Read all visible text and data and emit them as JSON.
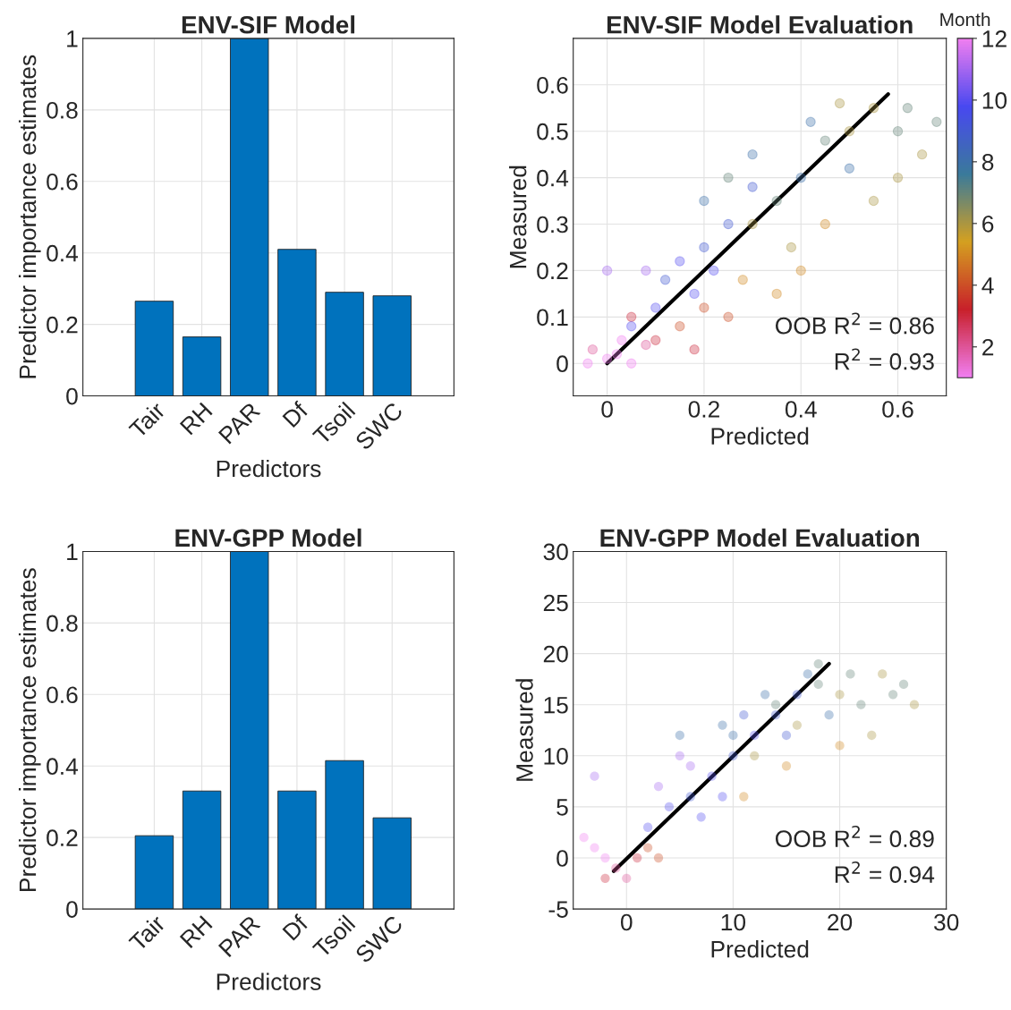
{
  "chart_data": [
    {
      "type": "bar",
      "title": "ENV-SIF Model",
      "xlabel": "Predictors",
      "ylabel": "Predictor importance estimates",
      "categories": [
        "Tair",
        "RH",
        "PAR",
        "Df",
        "Tsoil",
        "SWC"
      ],
      "values": [
        0.265,
        0.165,
        1,
        0.41,
        0.29,
        0.28
      ],
      "color": "#0072bd",
      "ylim": [
        0,
        1
      ],
      "yticks": [
        0,
        0.2,
        0.4,
        0.6,
        0.8,
        1
      ],
      "grid": true
    },
    {
      "type": "scatter",
      "title": "ENV-SIF Model Evaluation",
      "xlabel": "Predicted",
      "ylabel": "Measured",
      "clabel": "Month",
      "clim": [
        1,
        12
      ],
      "cticks": [
        2,
        4,
        6,
        8,
        10,
        12
      ],
      "xlim": [
        -0.07,
        0.7
      ],
      "ylim": [
        -0.07,
        0.7
      ],
      "xticks": [
        0,
        0.2,
        0.4,
        0.6
      ],
      "yticks": [
        0,
        0.1,
        0.2,
        0.3,
        0.4,
        0.5,
        0.6
      ],
      "grid": true,
      "annotations": [
        "OOB R$^{2}$ = 0.86",
        "R$^{2}$ = 0.93"
      ],
      "series": [
        {
          "type": "scatter",
          "marker": "circle",
          "x": [
            0.0,
            0.02,
            -0.03,
            0.05,
            0.03,
            -0.04,
            0.08,
            0.1,
            0.15,
            0.2,
            0.18,
            0.25,
            0.05,
            0.05,
            0.1,
            0.12,
            0.15,
            0.2,
            0.08,
            0.25,
            0.18,
            0.0,
            0.3,
            0.22,
            0.3,
            0.35,
            0.4,
            0.45,
            0.5,
            0.55,
            0.6,
            0.65,
            0.68,
            0.5,
            0.42,
            0.38,
            0.45,
            0.55,
            0.3,
            0.25,
            0.6,
            0.35,
            0.48,
            0.2,
            0.62,
            0.4,
            0.28
          ],
          "values": [
            0.01,
            0.02,
            0.03,
            0.0,
            0.05,
            0.0,
            0.04,
            0.05,
            0.08,
            0.12,
            0.03,
            0.1,
            0.1,
            0.08,
            0.12,
            0.18,
            0.22,
            0.25,
            0.2,
            0.3,
            0.15,
            0.2,
            0.38,
            0.2,
            0.3,
            0.35,
            0.4,
            0.48,
            0.5,
            0.55,
            0.5,
            0.45,
            0.52,
            0.42,
            0.52,
            0.25,
            0.3,
            0.35,
            0.45,
            0.4,
            0.4,
            0.15,
            0.56,
            0.35,
            0.55,
            0.2,
            0.18
          ],
          "cvalues": [
            1,
            1,
            2,
            1,
            12,
            1,
            2,
            3,
            4,
            4,
            3,
            4,
            3,
            10,
            10,
            9,
            10,
            9,
            11,
            9,
            10,
            11,
            9,
            10,
            6,
            7,
            8,
            7,
            6,
            6,
            7,
            6,
            7,
            8,
            8,
            6,
            5,
            6,
            8,
            7,
            6,
            5,
            6,
            8,
            7,
            5,
            5
          ],
          "colors": [
            "#f07ef0",
            "#f07ef0",
            "#de5497",
            "#f07ef0",
            "#f07ef0",
            "#f07ef0",
            "#de5497",
            "#cc283c",
            "#cc4e26",
            "#cc4e26",
            "#cc283c",
            "#cc4e26",
            "#cc283c",
            "#5750f0",
            "#5750f0",
            "#435ad1",
            "#5750f0",
            "#435ad1",
            "#a569f0",
            "#435ad1",
            "#5750f0",
            "#a569f0",
            "#435ad1",
            "#5750f0",
            "#aa9641",
            "#648479",
            "#3d71aa",
            "#648479",
            "#aa9641",
            "#aa9641",
            "#648479",
            "#aa9641",
            "#648479",
            "#3d71aa",
            "#3d71aa",
            "#aa9641",
            "#d28922",
            "#aa9641",
            "#3d71aa",
            "#648479",
            "#aa9641",
            "#d28922",
            "#aa9641",
            "#3d71aa",
            "#648479",
            "#d28922",
            "#d28922"
          ]
        },
        {
          "type": "line",
          "x": [
            0,
            0.58
          ],
          "values": [
            0,
            0.58
          ],
          "color": "#000000"
        }
      ]
    },
    {
      "type": "bar",
      "title": "ENV-GPP Model",
      "xlabel": "Predictors",
      "ylabel": "Predictor importance estimates",
      "categories": [
        "Tair",
        "RH",
        "PAR",
        "Df",
        "Tsoil",
        "SWC"
      ],
      "values": [
        0.205,
        0.33,
        1,
        0.33,
        0.415,
        0.255
      ],
      "color": "#0072bd",
      "ylim": [
        0,
        1
      ],
      "yticks": [
        0,
        0.2,
        0.4,
        0.6,
        0.8,
        1
      ],
      "grid": true
    },
    {
      "type": "scatter",
      "title": "ENV-GPP Model Evaluation",
      "xlabel": "Predicted",
      "ylabel": "Measured",
      "xlim": [
        -5,
        30
      ],
      "ylim": [
        -5,
        30
      ],
      "xticks": [
        0,
        10,
        20,
        30
      ],
      "yticks": [
        -5,
        0,
        5,
        10,
        15,
        20,
        25,
        30
      ],
      "grid": true,
      "annotations": [
        "OOB R$^{2}$ = 0.89",
        "R$^{2}$ = 0.94"
      ],
      "series": [
        {
          "type": "scatter",
          "marker": "circle",
          "x": [
            -2,
            -1,
            -3,
            0,
            1,
            2,
            3,
            -2,
            -4,
            2,
            4,
            6,
            8,
            10,
            12,
            6,
            14,
            16,
            9,
            3,
            -3,
            11,
            7,
            15,
            5,
            10,
            12,
            14,
            16,
            18,
            20,
            22,
            24,
            26,
            27,
            19,
            17,
            13,
            21,
            23,
            15,
            9,
            20,
            25,
            11,
            5,
            18
          ],
          "values": [
            0,
            -1,
            1,
            -2,
            0,
            1,
            0,
            -2,
            2,
            3,
            5,
            6,
            8,
            10,
            12,
            9,
            14,
            16,
            6,
            7,
            8,
            14,
            4,
            12,
            10,
            12,
            10,
            15,
            13,
            17,
            16,
            15,
            18,
            17,
            15,
            14,
            18,
            16,
            18,
            12,
            9,
            13,
            11,
            16,
            6,
            12,
            19
          ],
          "colors": [
            "#f07ef0",
            "#de5497",
            "#f07ef0",
            "#de5497",
            "#cc283c",
            "#cc4e26",
            "#cc4e26",
            "#cc283c",
            "#f07ef0",
            "#5750f0",
            "#5750f0",
            "#435ad1",
            "#5750f0",
            "#435ad1",
            "#5750f0",
            "#a569f0",
            "#435ad1",
            "#435ad1",
            "#5750f0",
            "#a569f0",
            "#a569f0",
            "#435ad1",
            "#5750f0",
            "#435ad1",
            "#a569f0",
            "#3d71aa",
            "#aa9641",
            "#648479",
            "#aa9641",
            "#648479",
            "#aa9641",
            "#648479",
            "#aa9641",
            "#648479",
            "#aa9641",
            "#3d71aa",
            "#3d71aa",
            "#3d71aa",
            "#648479",
            "#aa9641",
            "#d28922",
            "#3d71aa",
            "#d28922",
            "#648479",
            "#d28922",
            "#3d71aa",
            "#648479"
          ]
        },
        {
          "type": "line",
          "x": [
            -1.2,
            19
          ],
          "values": [
            -1.3,
            19
          ],
          "color": "#000000"
        }
      ]
    }
  ]
}
